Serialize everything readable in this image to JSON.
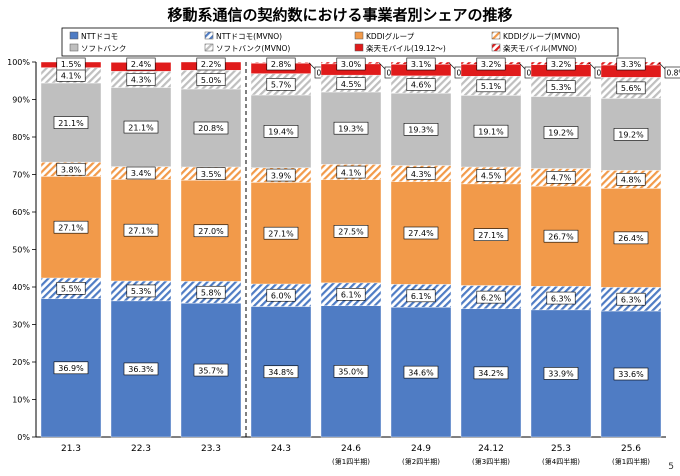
{
  "chart_data": {
    "type": "bar",
    "stacked": true,
    "title": "移動系通信の契約数における事業者別シェアの推移",
    "categories": [
      "21.3",
      "22.3",
      "23.3",
      "24.3",
      "24.6",
      "24.9",
      "24.12",
      "25.3",
      "25.6"
    ],
    "sublabels": [
      "",
      "",
      "",
      "",
      "(第1四半期)",
      "(第2四半期)",
      "(第3四半期)",
      "(第4四半期)",
      "(第1四半期)"
    ],
    "ylim": [
      0,
      100
    ],
    "yticks": [
      "0%",
      "10%",
      "20%",
      "30%",
      "40%",
      "50%",
      "60%",
      "70%",
      "80%",
      "90%",
      "100%"
    ],
    "series": [
      {
        "name": "NTTドコモ",
        "color": "#4f7cc4",
        "pattern": "none",
        "values": [
          36.9,
          36.3,
          35.7,
          34.8,
          35.0,
          34.6,
          34.2,
          33.9,
          33.6
        ]
      },
      {
        "name": "NTTドコモ(MVNO)",
        "color": "#4f7cc4",
        "pattern": "hatch",
        "values": [
          5.5,
          5.3,
          5.8,
          6.0,
          6.1,
          6.1,
          6.2,
          6.3,
          6.3
        ]
      },
      {
        "name": "KDDIグループ",
        "color": "#f29a4a",
        "pattern": "none",
        "values": [
          27.1,
          27.1,
          27.0,
          27.1,
          27.5,
          27.4,
          27.1,
          26.7,
          26.4
        ]
      },
      {
        "name": "KDDIグループ(MVNO)",
        "color": "#f29a4a",
        "pattern": "hatch",
        "values": [
          3.8,
          3.4,
          3.5,
          3.9,
          4.1,
          4.3,
          4.5,
          4.7,
          4.8
        ]
      },
      {
        "name": "ソフトバンク",
        "color": "#bfbfbf",
        "pattern": "none",
        "values": [
          21.1,
          21.1,
          20.8,
          19.4,
          19.3,
          19.3,
          19.1,
          19.2,
          19.2
        ]
      },
      {
        "name": "ソフトバンク(MVNO)",
        "color": "#bfbfbf",
        "pattern": "hatch",
        "values": [
          4.1,
          4.3,
          5.0,
          5.7,
          4.5,
          4.6,
          5.1,
          5.3,
          5.6
        ]
      },
      {
        "name": "楽天モバイル(19.12～)",
        "color": "#e01b1b",
        "pattern": "none",
        "values": [
          1.5,
          2.4,
          2.2,
          2.8,
          3.0,
          3.1,
          3.2,
          3.2,
          3.3
        ]
      },
      {
        "name": "楽天モバイル(MVNO)",
        "color": "#e01b1b",
        "pattern": "hatch",
        "values": [
          null,
          null,
          null,
          0.2,
          0.5,
          0.6,
          0.6,
          0.7,
          0.8
        ]
      }
    ],
    "value_labels": [
      [
        "36.9%",
        "36.3%",
        "35.7%",
        "34.8%",
        "35.0%",
        "34.6%",
        "34.2%",
        "33.9%",
        "33.6%"
      ],
      [
        "5.5%",
        "5.3%",
        "5.8%",
        "6.0%",
        "6.1%",
        "6.1%",
        "6.2%",
        "6.3%",
        "6.3%"
      ],
      [
        "27.1%",
        "27.1%",
        "27.0%",
        "27.1%",
        "27.5%",
        "27.4%",
        "27.1%",
        "26.7%",
        "26.4%"
      ],
      [
        "3.8%",
        "3.4%",
        "3.5%",
        "3.9%",
        "4.1%",
        "4.3%",
        "4.5%",
        "4.7%",
        "4.8%"
      ],
      [
        "21.1%",
        "21.1%",
        "20.8%",
        "19.4%",
        "19.3%",
        "19.3%",
        "19.1%",
        "19.2%",
        "19.2%"
      ],
      [
        "4.1%",
        "4.3%",
        "5.0%",
        "5.7%",
        "4.5%",
        "4.6%",
        "5.1%",
        "5.3%",
        "5.6%"
      ],
      [
        "1.5%",
        "2.4%",
        "2.2%",
        "2.8%",
        "3.0%",
        "3.1%",
        "3.2%",
        "3.2%",
        "3.3%"
      ],
      [
        "",
        "",
        "",
        "0.2%",
        "0.5%",
        "0.6%",
        "0.6%",
        "0.7%",
        "0.8%"
      ]
    ],
    "legend_position": "top",
    "grid": false,
    "divider_after_category": "23.3"
  },
  "page_number": "5"
}
